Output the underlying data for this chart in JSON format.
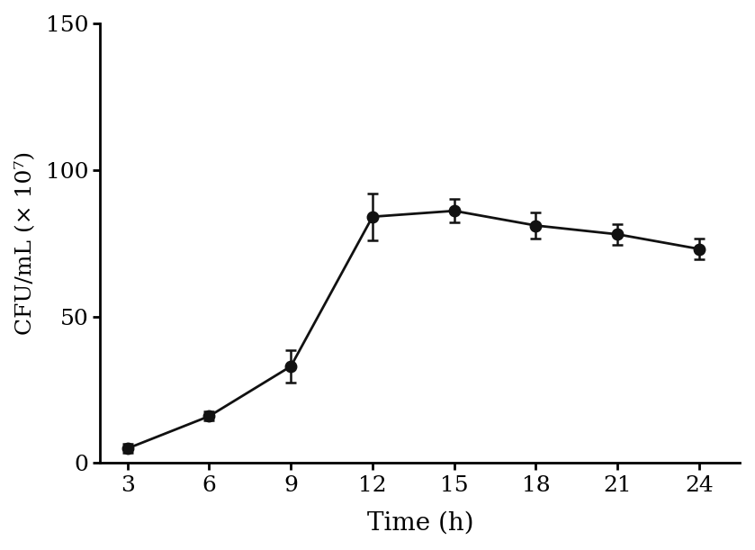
{
  "x": [
    3,
    6,
    9,
    12,
    15,
    18,
    21,
    24
  ],
  "y": [
    5,
    16,
    33,
    84,
    86,
    81,
    78,
    73
  ],
  "yerr": [
    1.5,
    1.5,
    5.5,
    8.0,
    4.0,
    4.5,
    3.5,
    3.5
  ],
  "xlabel": "Time (h)",
  "ylabel": "CFU/mL (× 10⁷)",
  "xlim": [
    2.0,
    25.5
  ],
  "ylim": [
    0,
    150
  ],
  "yticks": [
    0,
    50,
    100,
    150
  ],
  "xticks": [
    3,
    6,
    9,
    12,
    15,
    18,
    21,
    24
  ],
  "line_color": "#111111",
  "marker_color": "#111111",
  "marker_size": 9,
  "line_width": 2.0,
  "capsize": 4,
  "background_color": "#ffffff",
  "font_family": "serif",
  "tick_fontsize": 18,
  "label_fontsize": 20
}
